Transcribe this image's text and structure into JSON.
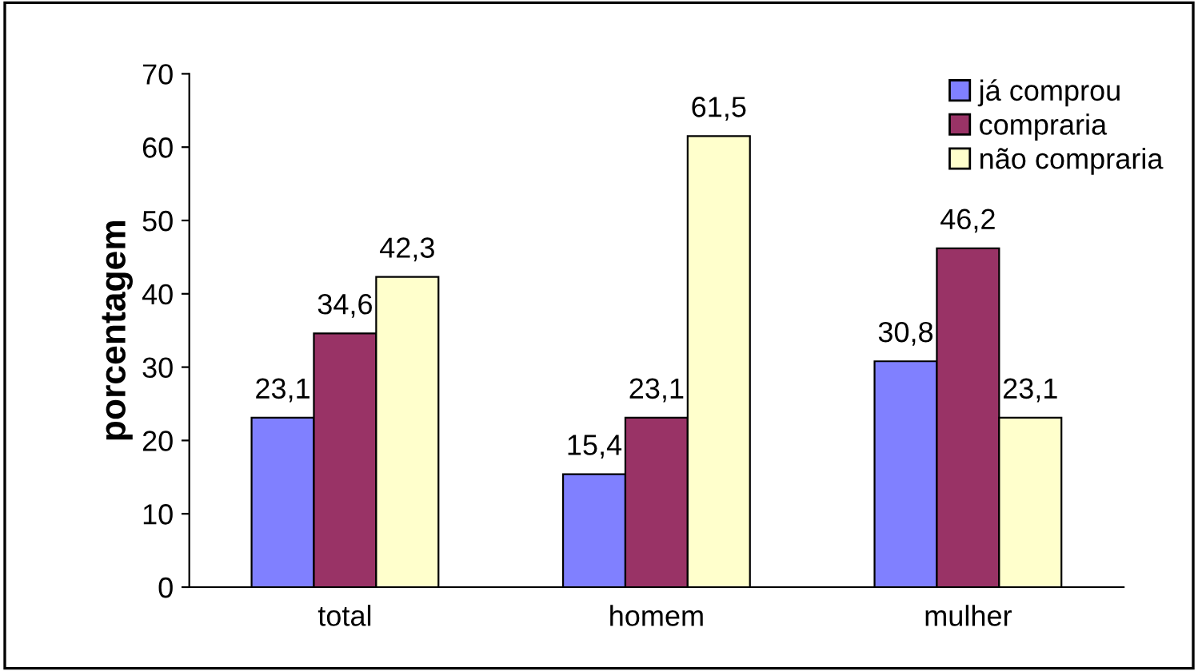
{
  "chart_data": {
    "type": "bar",
    "ylabel": "porcentagem",
    "categories": [
      "total",
      "homem",
      "mulher"
    ],
    "series": [
      {
        "name": "já comprou",
        "color": "#8080ff",
        "values": [
          23.1,
          15.4,
          30.8
        ],
        "value_labels": [
          "23,1",
          "15,4",
          "30,8"
        ]
      },
      {
        "name": "compraria",
        "color": "#993366",
        "values": [
          34.6,
          23.1,
          46.2
        ],
        "value_labels": [
          "34,6",
          "23,1",
          "46,2"
        ]
      },
      {
        "name": "não compraria",
        "color": "#ffffcc",
        "values": [
          42.3,
          61.5,
          23.1
        ],
        "value_labels": [
          "42,3",
          "61,5",
          "23,1"
        ]
      }
    ],
    "ylim": [
      0,
      70
    ],
    "yticks": [
      0,
      10,
      20,
      30,
      40,
      50,
      60,
      70
    ],
    "grid": false,
    "legend": "top right"
  }
}
